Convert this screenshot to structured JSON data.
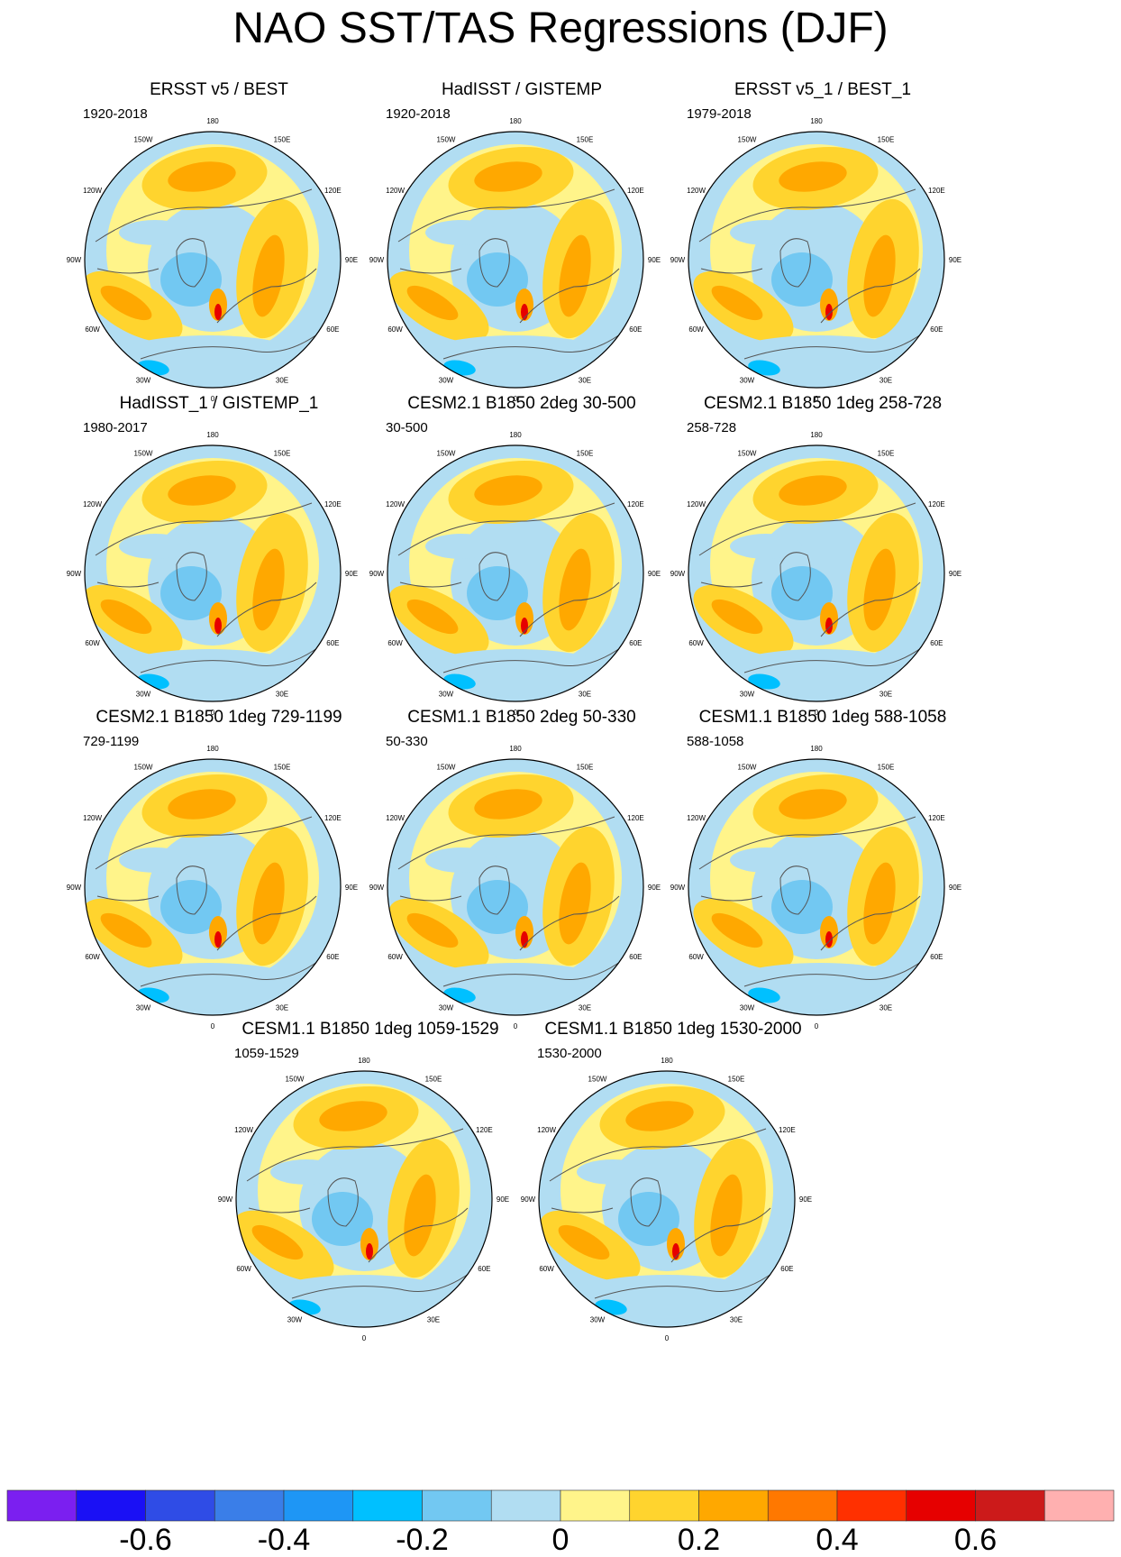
{
  "title": "NAO SST/TAS Regressions (DJF)",
  "longitude_labels": [
    "180",
    "150E",
    "120E",
    "90E",
    "60E",
    "30E",
    "0",
    "30W",
    "60W",
    "90W",
    "120W",
    "150W"
  ],
  "panels": [
    {
      "title": "ERSST v5 / BEST",
      "period": "1920-2018"
    },
    {
      "title": "HadISST / GISTEMP",
      "period": "1920-2018"
    },
    {
      "title": "ERSST v5_1 / BEST_1",
      "period": "1979-2018"
    },
    {
      "title": "HadISST_1 / GISTEMP_1",
      "period": "1980-2017"
    },
    {
      "title": "CESM2.1 B1850 2deg 30-500",
      "period": "30-500"
    },
    {
      "title": "CESM2.1 B1850 1deg 258-728",
      "period": "258-728"
    },
    {
      "title": "CESM2.1 B1850 1deg 729-1199",
      "period": "729-1199"
    },
    {
      "title": "CESM1.1 B1850 2deg 50-330",
      "period": "50-330"
    },
    {
      "title": "CESM1.1 B1850 1deg 588-1058",
      "period": "588-1058"
    },
    {
      "title": "CESM1.1 B1850 1deg 1059-1529",
      "period": "1059-1529"
    },
    {
      "title": "CESM1.1 B1850 1deg 1530-2000",
      "period": "1530-2000"
    }
  ],
  "colorbar": {
    "colors": [
      "#7b1ff0",
      "#1a10f5",
      "#2f4ce6",
      "#3a7ee8",
      "#1e96f5",
      "#00c0ff",
      "#72c8f2",
      "#b1ddf2",
      "#fff48a",
      "#ffd42e",
      "#ffa800",
      "#ff7800",
      "#ff3000",
      "#e60000",
      "#cc1a1a",
      "#ffb0b0"
    ],
    "labels": [
      "-0.6",
      "-0.4",
      "-0.2",
      "0",
      "0.2",
      "0.4",
      "0.6"
    ]
  }
}
